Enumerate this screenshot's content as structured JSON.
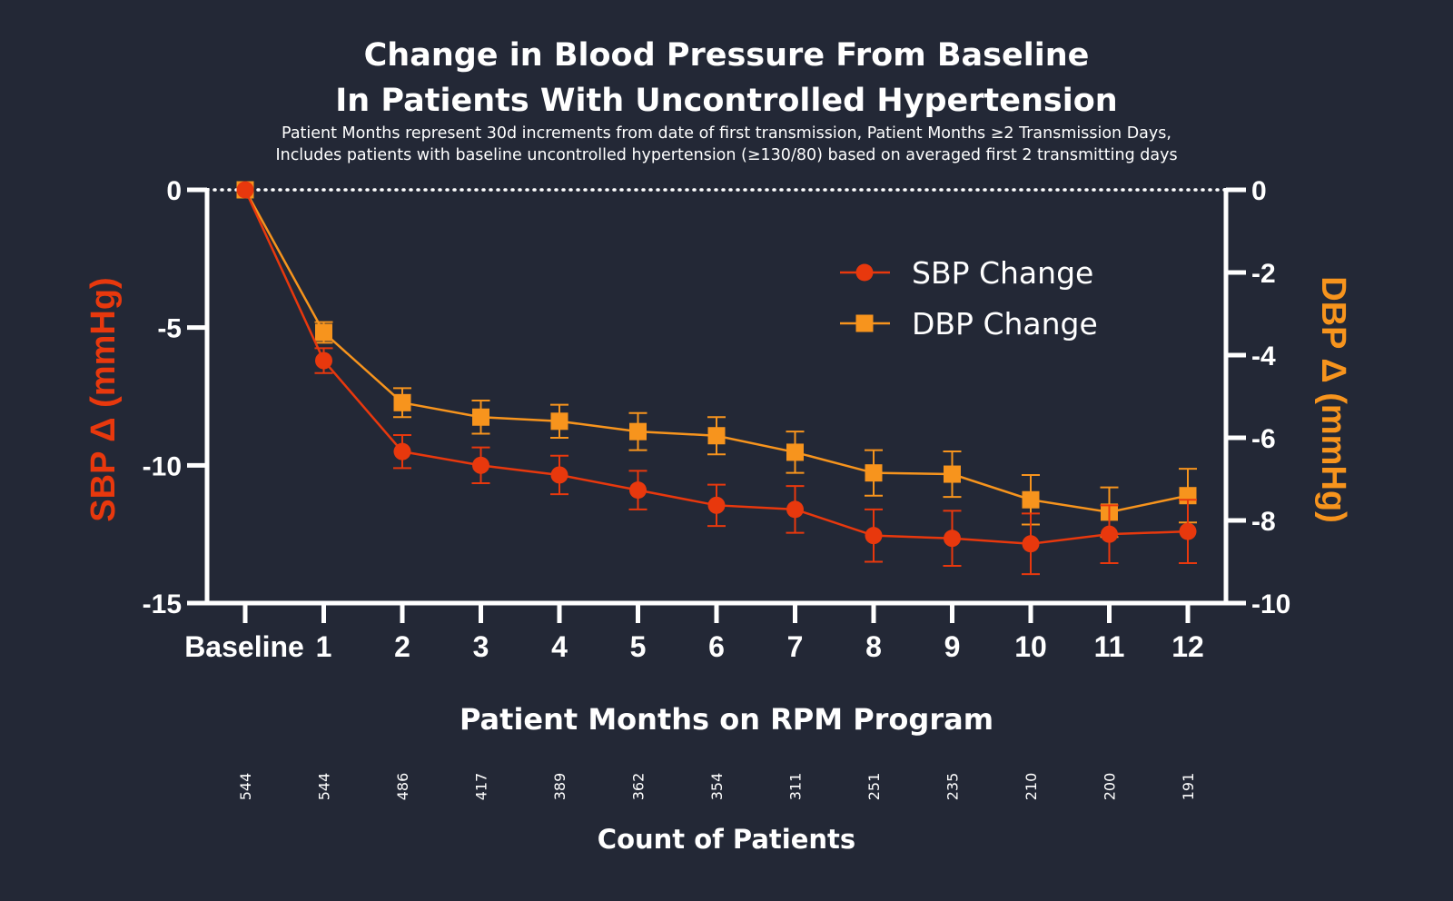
{
  "title_line1": "Change in Blood Pressure From Baseline",
  "title_line2": "In Patients With Uncontrolled Hypertension",
  "subtitle_line1": "Patient Months represent 30d increments from date of first transmission,  Patient Months ≥2 Transmission Days,",
  "subtitle_line2": "Includes patients with baseline uncontrolled hypertension (≥130/80) based on averaged first 2 transmitting days",
  "colors": {
    "background": "#232836",
    "sbp": "#e8380d",
    "dbp": "#f7941d",
    "axis": "#ffffff"
  },
  "chart_data": {
    "type": "line",
    "title": "Change in Blood Pressure From Baseline In Patients With Uncontrolled Hypertension",
    "xlabel": "Patient Months on RPM Program",
    "ylabel_left": "SBP Δ (mmHg)",
    "ylabel_right": "DBP Δ (mmHg)",
    "categories": [
      "Baseline",
      "1",
      "2",
      "3",
      "4",
      "5",
      "6",
      "7",
      "8",
      "9",
      "10",
      "11",
      "12"
    ],
    "y_left": {
      "lim": [
        -15,
        0
      ],
      "ticks": [
        0,
        -5,
        -10,
        -15
      ],
      "tick_labels": [
        "0",
        "-5",
        "-10",
        "-15"
      ]
    },
    "y_right": {
      "lim": [
        -10,
        0
      ],
      "ticks": [
        0,
        -2,
        -4,
        -6,
        -8,
        -10
      ],
      "tick_labels": [
        "0",
        "-2",
        "-4",
        "-6",
        "-8",
        "-10"
      ]
    },
    "legend_position": "top-right",
    "reference_line": 0,
    "series": [
      {
        "name": "SBP Change",
        "axis": "left",
        "marker": "circle",
        "values": [
          0,
          -6.2,
          -9.5,
          -10.0,
          -10.35,
          -10.9,
          -11.45,
          -11.6,
          -12.55,
          -12.65,
          -12.85,
          -12.5,
          -12.4
        ],
        "error": [
          0,
          0.45,
          0.6,
          0.65,
          0.7,
          0.7,
          0.75,
          0.85,
          0.95,
          1.0,
          1.1,
          1.05,
          1.15
        ]
      },
      {
        "name": "DBP Change",
        "axis": "right",
        "marker": "square",
        "values": [
          0,
          -3.45,
          -5.15,
          -5.5,
          -5.6,
          -5.85,
          -5.95,
          -6.35,
          -6.85,
          -6.88,
          -7.5,
          -7.8,
          -7.4
        ],
        "error": [
          0,
          0.25,
          0.35,
          0.4,
          0.4,
          0.45,
          0.45,
          0.5,
          0.55,
          0.55,
          0.6,
          0.6,
          0.65
        ]
      }
    ],
    "count_label": "Count of Patients",
    "counts": [
      "544",
      "544",
      "486",
      "417",
      "389",
      "362",
      "354",
      "311",
      "251",
      "235",
      "210",
      "200",
      "191"
    ]
  }
}
